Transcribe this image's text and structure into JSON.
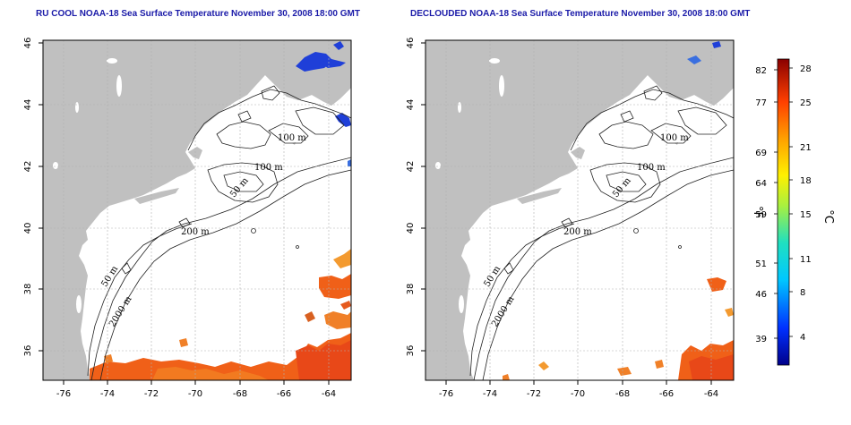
{
  "panels": [
    {
      "id": "left",
      "title": "RU COOL NOAA-18 Sea Surface Temperature November 30, 2008 18:00 GMT",
      "x_ticks": [
        "-76",
        "-74",
        "-72",
        "-70",
        "-68",
        "-66",
        "-64"
      ],
      "y_ticks": [
        "46",
        "44",
        "42",
        "40",
        "38",
        "36"
      ],
      "depth_labels": [
        "100 m",
        "100 m",
        "50 m",
        "200 m",
        "50 m",
        "2000 m"
      ]
    },
    {
      "id": "right",
      "title": "DECLOUDED NOAA-18 Sea Surface Temperature November 30, 2008 18:00 GMT",
      "x_ticks": [
        "-76",
        "-74",
        "-72",
        "-70",
        "-68",
        "-66",
        "-64"
      ],
      "y_ticks": [
        "46",
        "44",
        "42",
        "40",
        "38",
        "36"
      ],
      "depth_labels": [
        "100 m",
        "100 m",
        "50 m",
        "200 m",
        "50 m",
        "2000 m"
      ]
    }
  ],
  "colorbar": {
    "fahrenheit_ticks": [
      "82",
      "77",
      "69",
      "64",
      "59",
      "51",
      "46",
      "39"
    ],
    "celsius_ticks": [
      "28",
      "25",
      "21",
      "18",
      "15",
      "11",
      "8",
      "4"
    ],
    "unit_f": "°F",
    "unit_c": "°C"
  },
  "colors": {
    "title": "#1a1aa8",
    "land": "#c0c0c0",
    "ocean": "#ffffff",
    "contour": "#222222",
    "grid": "#b0b0b0",
    "sst_warm": "#f06018"
  }
}
